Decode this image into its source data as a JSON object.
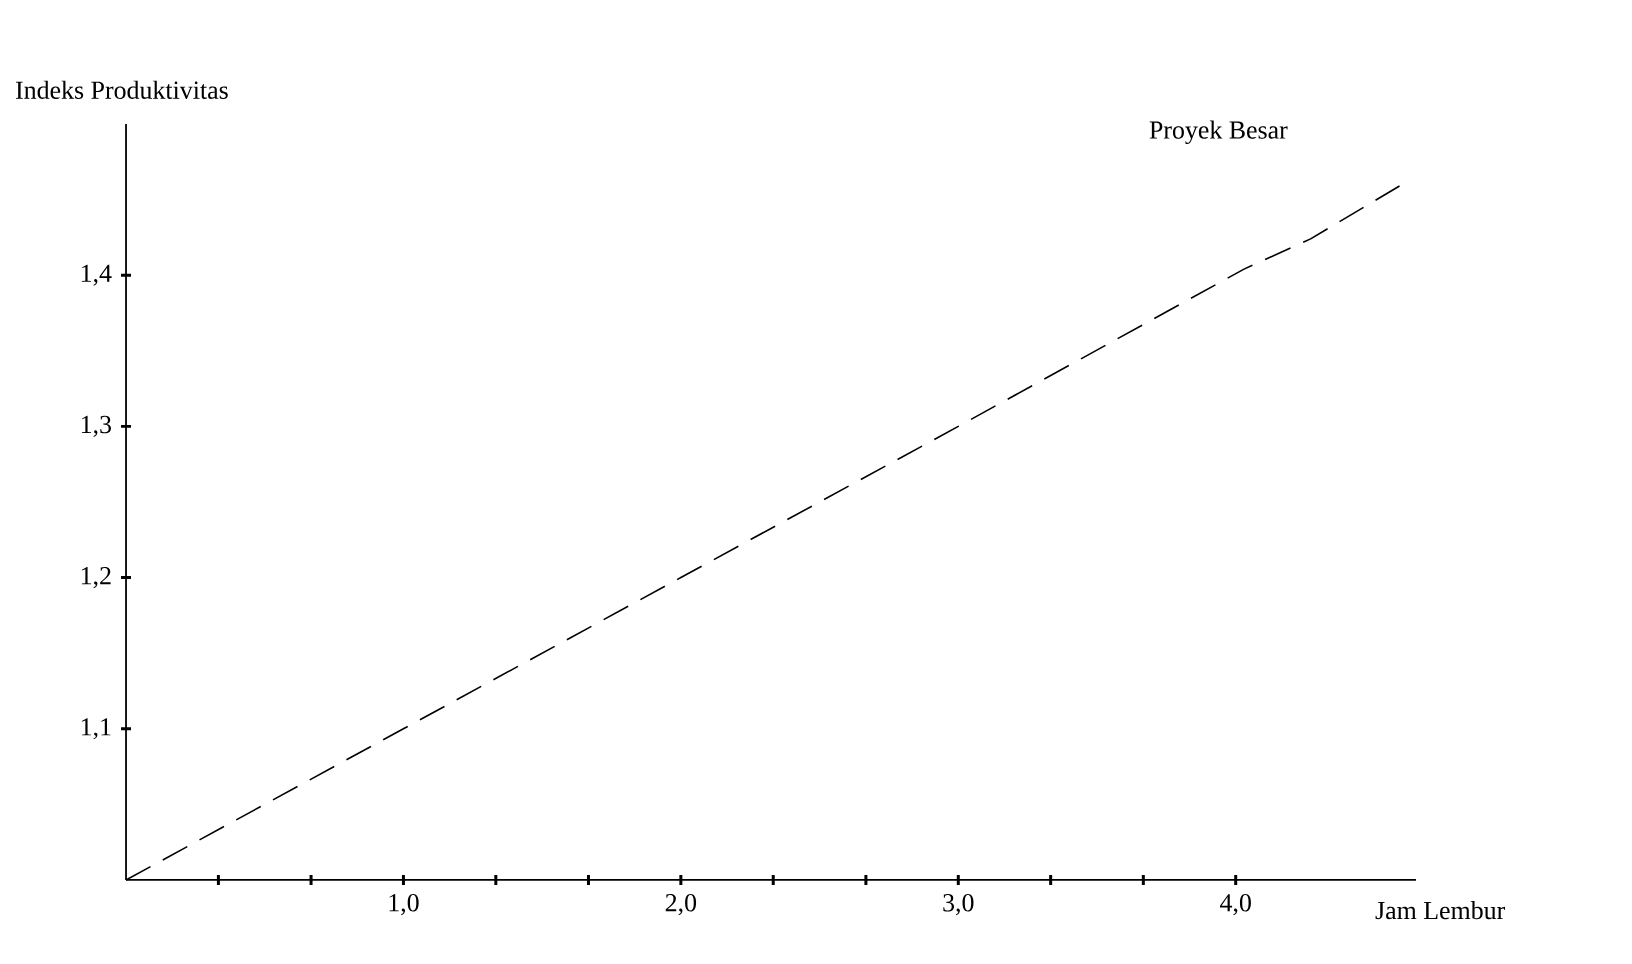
{
  "chart_data": {
    "type": "line",
    "xlabel": "Jam Lembur",
    "ylabel": "Indeks Produktivitas",
    "series": [
      {
        "name": "Proyek Besar",
        "color": "#000000",
        "x": [
          0,
          1,
          2,
          3,
          4.03,
          4.27,
          4.6
        ],
        "values": [
          1.0,
          1.1,
          1.2,
          1.3,
          1.404,
          1.424,
          1.46
        ]
      }
    ],
    "xlim": [
      0,
      4.65
    ],
    "ylim": [
      1.0,
      1.5
    ],
    "xticks": [
      {
        "value": 0.333,
        "label": null
      },
      {
        "value": 0.667,
        "label": null
      },
      {
        "value": 1,
        "label": "1,0"
      },
      {
        "value": 1.333,
        "label": null
      },
      {
        "value": 1.667,
        "label": null
      },
      {
        "value": 2,
        "label": "2,0"
      },
      {
        "value": 2.333,
        "label": null
      },
      {
        "value": 2.667,
        "label": null
      },
      {
        "value": 3,
        "label": "3,0"
      },
      {
        "value": 3.333,
        "label": null
      },
      {
        "value": 3.667,
        "label": null
      },
      {
        "value": 4,
        "label": "4,0"
      }
    ],
    "yticks": [
      {
        "value": 1.1,
        "label": "1,1"
      },
      {
        "value": 1.2,
        "label": "1,2"
      },
      {
        "value": 1.3,
        "label": "1,3"
      },
      {
        "value": 1.4,
        "label": "1,4"
      }
    ],
    "grid": false,
    "legend": false,
    "marker": "none",
    "line_style": "dashed"
  }
}
